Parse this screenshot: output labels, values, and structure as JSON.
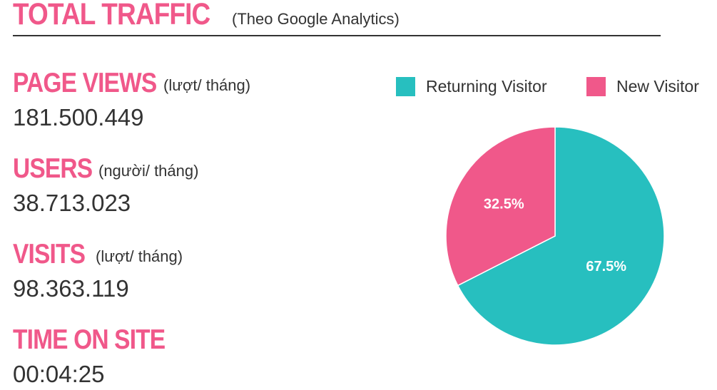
{
  "header": {
    "title": "TOTAL TRAFFIC",
    "subtitle": "(Theo Google Analytics)"
  },
  "metrics": [
    {
      "label": "PAGE VIEWS",
      "unit": "(lượt/ tháng)",
      "value": "181.500.449"
    },
    {
      "label": "USERS",
      "unit": "(người/ tháng)",
      "value": "38.713.023"
    },
    {
      "label": "VISITS",
      "unit": "(lượt/ tháng)",
      "value": "98.363.119"
    },
    {
      "label": "TIME ON SITE",
      "unit": "",
      "value": "00:04:25"
    }
  ],
  "colors": {
    "accent": "#f0588a",
    "returning": "#27bfbf",
    "new": "#f0588a",
    "text": "#333333"
  },
  "chart_data": {
    "type": "pie",
    "legend_position": "top",
    "slices": [
      {
        "name": "Returning Visitor",
        "value": 67.5,
        "label": "67.5%",
        "color": "#27bfbf"
      },
      {
        "name": "New Visitor",
        "value": 32.5,
        "label": "32.5%",
        "color": "#f0588a"
      }
    ]
  }
}
